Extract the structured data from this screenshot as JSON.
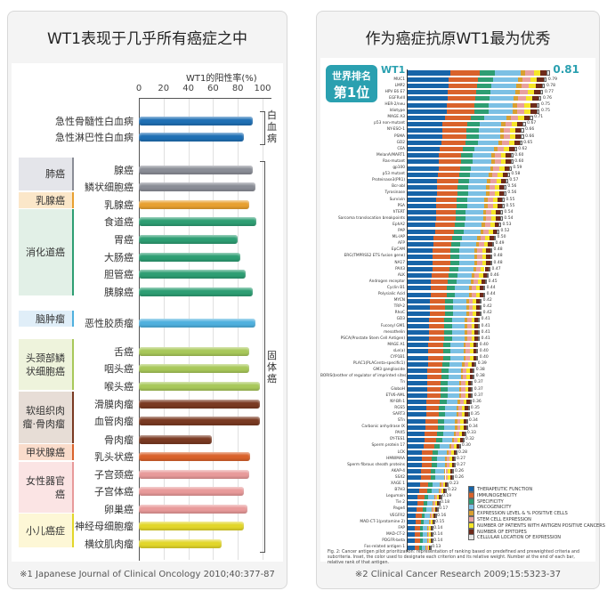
{
  "left": {
    "title": "WT1表现于几乎所有癌症之中",
    "footnote": "※1  Japanese Journal of Clinical Oncology 2010;40:377-87",
    "bracket_leukemia": "白血病",
    "bracket_solid": "固体癌"
  },
  "right": {
    "title": "作为癌症抗原WT1最为优秀",
    "badge_line1": "世界排名",
    "badge_line2": "第1位",
    "caption": "Fig. 2: Cancer antigen pilot prioritization: representation of ranking based on predefined and preweighted criteria and subcriteria. Inset, the color used to designate each criterion and its relative weight. Number at the end of each bar, relative rank of that antigen.",
    "footnote": "※2  Clinical Cancer Research 2009;15:5323-37"
  },
  "chart_data": [
    {
      "type": "bar",
      "orientation": "horizontal",
      "xlabel": "WT1的阳性率(%)",
      "xlim": [
        0,
        100
      ],
      "xticks": [
        "0",
        "20",
        "40",
        "60",
        "80",
        "100"
      ],
      "grid": true,
      "groups": [
        {
          "name": "",
          "color": "#1f6fb4"
        },
        {
          "name": "肺癌",
          "bg": "#e4e5ea",
          "edge": "#8a8d96"
        },
        {
          "name": "乳腺癌",
          "bg": "#fbe7c9",
          "edge": "#e8a030"
        },
        {
          "name": "消化道癌",
          "bg": "#e2f0e7",
          "edge": "#2e9e73"
        },
        {
          "name": "脑肿瘤",
          "bg": "#e0eef8",
          "edge": "#4fb0de"
        },
        {
          "name": "头颈部鳞状细胞癌",
          "bg": "#eef3dc",
          "edge": "#a8c85a"
        },
        {
          "name": "软组织肉瘤·骨肉瘤",
          "bg": "#e7ddd6",
          "edge": "#7a3a22"
        },
        {
          "name": "甲状腺癌",
          "bg": "#fadccb",
          "edge": "#d9622b"
        },
        {
          "name": "女性器官癌",
          "bg": "#fbe4e4",
          "edge": "#e89a9a"
        },
        {
          "name": "小儿癌症",
          "bg": "#fdf7d6",
          "edge": "#e2d62a"
        }
      ],
      "bars": [
        {
          "label": "急性骨髓性白血病",
          "value": 92,
          "group": 0,
          "color": "#1f6fb4"
        },
        {
          "label": "急性淋巴性白血病",
          "value": 85,
          "group": 0,
          "color": "#1f6fb4"
        },
        {
          "label": "腺癌",
          "value": 92,
          "group": 1,
          "color": "#8a8d96"
        },
        {
          "label": "鳞状细胞癌",
          "value": 94,
          "group": 1,
          "color": "#8a8d96"
        },
        {
          "label": "乳腺癌",
          "value": 89,
          "group": 2,
          "color": "#e8a030"
        },
        {
          "label": "食道癌",
          "value": 95,
          "group": 3,
          "color": "#2e9e73"
        },
        {
          "label": "胃癌",
          "value": 80,
          "group": 3,
          "color": "#2e9e73"
        },
        {
          "label": "大肠癌",
          "value": 82,
          "group": 3,
          "color": "#2e9e73"
        },
        {
          "label": "胆管癌",
          "value": 86,
          "group": 3,
          "color": "#2e9e73"
        },
        {
          "label": "胰腺癌",
          "value": 92,
          "group": 3,
          "color": "#2e9e73"
        },
        {
          "label": "恶性胶质瘤",
          "value": 94,
          "group": 4,
          "color": "#4fb0de"
        },
        {
          "label": "舌癌",
          "value": 89,
          "group": 5,
          "color": "#a8c85a"
        },
        {
          "label": "咽头癌",
          "value": 89,
          "group": 5,
          "color": "#a8c85a"
        },
        {
          "label": "喉头癌",
          "value": 98,
          "group": 5,
          "color": "#a8c85a"
        },
        {
          "label": "滑膜肉瘤",
          "value": 98,
          "group": 6,
          "color": "#7a3a22"
        },
        {
          "label": "血管肉瘤",
          "value": 98,
          "group": 6,
          "color": "#7a3a22"
        },
        {
          "label": "骨肉瘤",
          "value": 59,
          "group": 6,
          "color": "#7a3a22"
        },
        {
          "label": "乳头状癌",
          "value": 90,
          "group": 7,
          "color": "#d9622b"
        },
        {
          "label": "子宫颈癌",
          "value": 89,
          "group": 8,
          "color": "#e89a9a"
        },
        {
          "label": "子宫体癌",
          "value": 85,
          "group": 8,
          "color": "#e89a9a"
        },
        {
          "label": "卵巢癌",
          "value": 88,
          "group": 8,
          "color": "#e89a9a"
        },
        {
          "label": "神经母细胞瘤",
          "value": 85,
          "group": 9,
          "color": "#e2d62a"
        },
        {
          "label": "横纹肌肉瘤",
          "value": 67,
          "group": 9,
          "color": "#e2d62a"
        }
      ]
    },
    {
      "type": "bar",
      "orientation": "horizontal",
      "stacked": true,
      "xlim": [
        0,
        1
      ],
      "legend_placement": "bottom-right",
      "criteria": [
        {
          "name": "THERAPEUTIC FUNCTION",
          "color": "#1764a8"
        },
        {
          "name": "IMMUNOGENICITY",
          "color": "#d9622b"
        },
        {
          "name": "SPECIFICITY",
          "color": "#2e9e73"
        },
        {
          "name": "ONCOGENICITY",
          "color": "#7cc0e4"
        },
        {
          "name": "EXPRESSION LEVEL & % POSITIVE CELLS",
          "color": "#d9a030"
        },
        {
          "name": "STEM CELL EXPRESSION",
          "color": "#e8a0a0"
        },
        {
          "name": "NUMBER OF PATIENTS WITH ANTIGEN POSITIVE CANCERS",
          "color": "#f5e628"
        },
        {
          "name": "NUMBER OF EPITOPES",
          "color": "#6e2a1a"
        },
        {
          "name": "CELLULAR LOCATION OF EXPRESSION",
          "color": "#e6e6e6"
        }
      ],
      "wt1_segments": [
        0.24,
        0.17,
        0.085,
        0.146,
        0.027,
        0.047,
        0.037,
        0.037,
        0.02
      ],
      "antigens": [
        [
          "WT1",
          0.81
        ],
        [
          "MUC1",
          0.79
        ],
        [
          "LMP2",
          0.78
        ],
        [
          "HPV E6 E7",
          0.77
        ],
        [
          "EGFRvIII",
          0.76
        ],
        [
          "HER-2/neu",
          0.75
        ],
        [
          "Idiotype",
          0.75
        ],
        [
          "MAGE A3",
          0.71
        ],
        [
          "p53 non-mutant",
          0.67
        ],
        [
          "NY-ESO-1",
          0.66
        ],
        [
          "PSMA",
          0.66
        ],
        [
          "GD2",
          0.65
        ],
        [
          "CEA",
          0.62
        ],
        [
          "MelanA/MART1",
          0.6
        ],
        [
          "Ras-mutant",
          0.6
        ],
        [
          "gp100",
          0.59
        ],
        [
          "p53 mutant",
          0.58
        ],
        [
          "Proteinase3(PR1)",
          0.57
        ],
        [
          "Bcr-abl",
          0.56
        ],
        [
          "Tyrosinase",
          0.56
        ],
        [
          "Survivin",
          0.55
        ],
        [
          "PSA",
          0.55
        ],
        [
          "hTERT",
          0.54
        ],
        [
          "Sarcoma translocation breakpoints",
          0.54
        ],
        [
          "EphA2",
          0.53
        ],
        [
          "PAP",
          0.52
        ],
        [
          "ML-IAP",
          0.5
        ],
        [
          "AFP",
          0.49
        ],
        [
          "EpCAM",
          0.48
        ],
        [
          "ERG(TMPRSS2 ETS fusion gene)",
          0.48
        ],
        [
          "NA17",
          0.48
        ],
        [
          "PAX3",
          0.47
        ],
        [
          "ALK",
          0.46
        ],
        [
          "Androgen receptor",
          0.45
        ],
        [
          "Cyclin B1",
          0.44
        ],
        [
          "Polysialic Acid",
          0.44
        ],
        [
          "MYCN",
          0.42
        ],
        [
          "TRP-2",
          0.42
        ],
        [
          "RhoC",
          0.42
        ],
        [
          "GD3",
          0.41
        ],
        [
          "Fucosyl GM1",
          0.41
        ],
        [
          "mesothelin",
          0.41
        ],
        [
          "PSCA(Prostate Stem Cell Antigen)",
          0.41
        ],
        [
          "MAGE A1",
          0.4
        ],
        [
          "sLe(a)",
          0.4
        ],
        [
          "CYP1B1",
          0.4
        ],
        [
          "PLAC1(PLACenta-specific1)",
          0.39
        ],
        [
          "GM3 ganglioside",
          0.38
        ],
        [
          "BORIS(brother of regulator of imprinted sites)",
          0.38
        ],
        [
          "Tn",
          0.37
        ],
        [
          "GloboH",
          0.37
        ],
        [
          "ETV6-AML",
          0.37
        ],
        [
          "NY-BR-1",
          0.36
        ],
        [
          "RGS5",
          0.35
        ],
        [
          "SART3",
          0.35
        ],
        [
          "STn",
          0.34
        ],
        [
          "Carbonic anhydrase IX",
          0.34
        ],
        [
          "PAX5",
          0.33
        ],
        [
          "OY-TES1",
          0.32
        ],
        [
          "Sperm protein 17",
          0.3
        ],
        [
          "LCK",
          0.28
        ],
        [
          "HMWMAA",
          0.27
        ],
        [
          "Sperm fibrous sheath proteins",
          0.27
        ],
        [
          "AKAP-4",
          0.26
        ],
        [
          "SSX2",
          0.26
        ],
        [
          "XAGE 1",
          0.23
        ],
        [
          "B7H3",
          0.22
        ],
        [
          "Legumain",
          0.19
        ],
        [
          "Tie 2",
          0.18
        ],
        [
          "Page4",
          0.17
        ],
        [
          "VEGFR2",
          0.16
        ],
        [
          "MAD-CT-1(protamine 2)",
          0.15
        ],
        [
          "FAP",
          0.14
        ],
        [
          "MAD-CT-2",
          0.14
        ],
        [
          "PDGFR-beta",
          0.14
        ],
        [
          "Fos-related antigen 1",
          0.13
        ]
      ]
    }
  ]
}
